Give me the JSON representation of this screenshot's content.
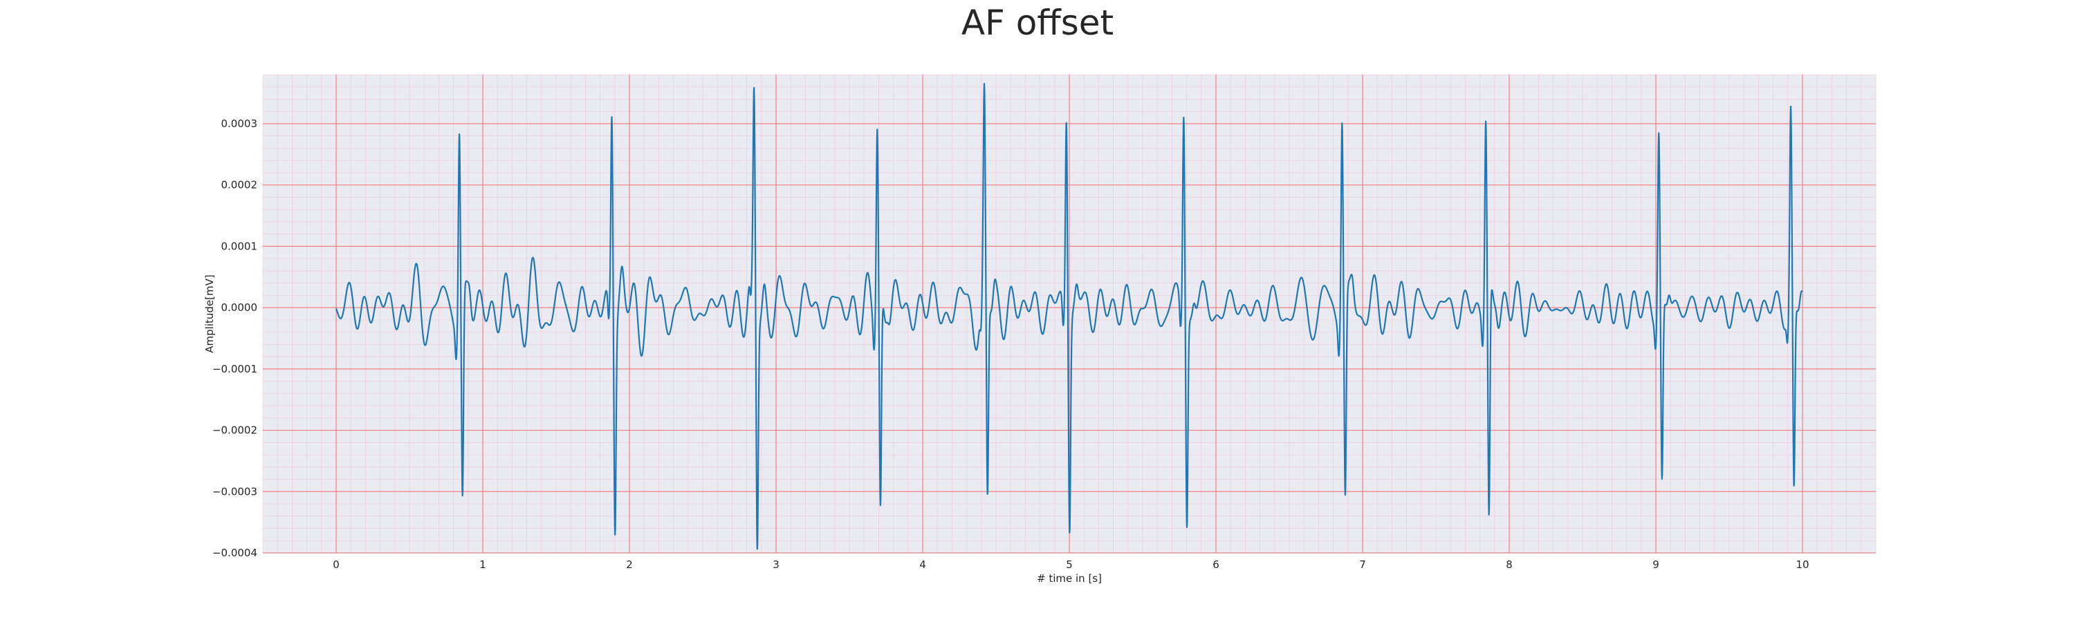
{
  "chart_data": {
    "type": "line",
    "title": "AF offset",
    "xlabel": "# time in [s]",
    "ylabel": "Amplitude[mV]",
    "xlim": [
      -0.5,
      10.5
    ],
    "ylim": [
      -0.0004,
      0.00038
    ],
    "xticks": [
      0,
      1,
      2,
      3,
      4,
      5,
      6,
      7,
      8,
      9,
      10
    ],
    "xtick_labels": [
      "0",
      "1",
      "2",
      "3",
      "4",
      "5",
      "6",
      "7",
      "8",
      "9",
      "10"
    ],
    "yticks": [
      -0.0004,
      -0.0003,
      -0.0002,
      -0.0001,
      0.0,
      0.0001,
      0.0002,
      0.0003
    ],
    "ytick_labels": [
      "−0.0004",
      "−0.0003",
      "−0.0002",
      "−0.0001",
      "0.0000",
      "0.0001",
      "0.0002",
      "0.0003"
    ],
    "grid": "on (ECG paper style: red major grid, light red minor grid)",
    "background": "#eaeaf2",
    "colors": {
      "line": "#1f77b4",
      "major_grid": "#f08080",
      "minor_grid": "#f5b7c5"
    },
    "r_peaks": [
      {
        "t": 0.84,
        "peak": 0.00032,
        "trough": -0.00032
      },
      {
        "t": 1.88,
        "peak": 0.000343,
        "trough": -0.00032
      },
      {
        "t": 2.85,
        "peak": 0.000328,
        "trough": -0.000373
      },
      {
        "t": 3.69,
        "peak": 0.000305,
        "trough": -0.000345
      },
      {
        "t": 4.42,
        "peak": 0.000315,
        "trough": -0.00033
      },
      {
        "t": 4.98,
        "peak": 0.000333,
        "trough": -0.00033
      },
      {
        "t": 5.78,
        "peak": 0.000333,
        "trough": -0.000333
      },
      {
        "t": 6.86,
        "peak": 0.000337,
        "trough": -0.000313
      },
      {
        "t": 7.84,
        "peak": 0.000313,
        "trough": -0.000373
      },
      {
        "t": 9.02,
        "peak": 0.00029,
        "trough": -0.000295
      },
      {
        "t": 9.92,
        "peak": 0.000312,
        "trough": -0.00031
      }
    ],
    "series": [
      {
        "x_start": 0.0,
        "x_end": 10.0,
        "description_values": "ECG waveform, baseline around 0 with small fibrillatory oscillations of about ±0.00003"
      }
    ]
  }
}
